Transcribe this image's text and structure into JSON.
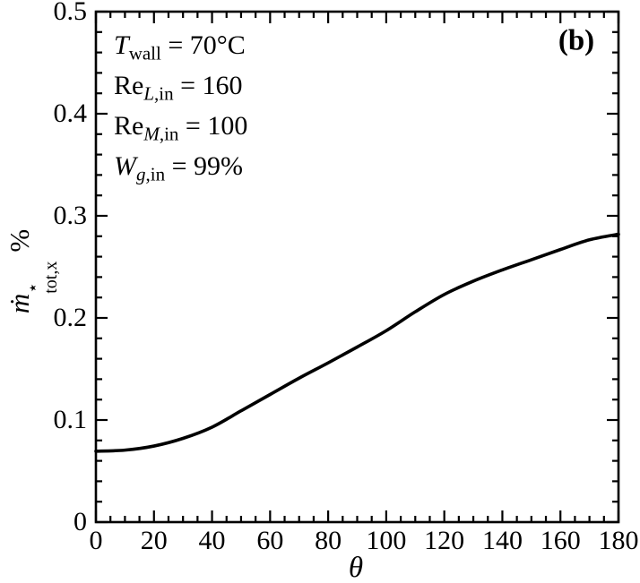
{
  "figure": {
    "panel_label": "(b)",
    "background": "#ffffff",
    "line_color": "#000000"
  },
  "axes": {
    "x_label": "θ",
    "y_label": {
      "base": "ṁ",
      "sup": "⋆",
      "sub": "tot,x",
      "unit": "%"
    },
    "x_tick_labels": [
      "0",
      "20",
      "40",
      "60",
      "80",
      "100",
      "120",
      "140",
      "160",
      "180"
    ],
    "y_tick_labels": [
      "0",
      "0.1",
      "0.2",
      "0.3",
      "0.4",
      "0.5"
    ]
  },
  "annotations": [
    {
      "base_it": "T",
      "base_rm": "",
      "sub_it": "",
      "sub_rm": "wall",
      "eq": " = 70°C"
    },
    {
      "base_it": "",
      "base_rm": "Re",
      "sub_it": "L",
      "sub_rm": ",in",
      "eq": " = 160"
    },
    {
      "base_it": "",
      "base_rm": "Re",
      "sub_it": "M",
      "sub_rm": ",in",
      "eq": " = 100"
    },
    {
      "base_it": "W",
      "base_rm": "",
      "sub_it": "g",
      "sub_rm": ",in",
      "eq": " = 99%"
    }
  ],
  "chart_data": {
    "type": "line",
    "title": "",
    "xlabel": "θ",
    "ylabel": "ṁ⋆tot,x %",
    "panel_label": "(b)",
    "xlim": [
      0,
      180
    ],
    "ylim": [
      0,
      0.5
    ],
    "x_major_step": 20,
    "x_minor_step": 5,
    "y_major_step": 0.1,
    "y_minor_step": 0.02,
    "grid": false,
    "legend": "none",
    "annotations_text": [
      "T_wall = 70°C",
      "Re_L,in = 160",
      "Re_M,in = 100",
      "W_g,in = 99%"
    ],
    "series": [
      {
        "name": "mdot_star_tot_x_percent",
        "color": "#000000",
        "x": [
          0,
          10,
          20,
          30,
          40,
          50,
          60,
          70,
          80,
          90,
          100,
          110,
          120,
          130,
          140,
          150,
          160,
          170,
          180
        ],
        "y": [
          0.0695,
          0.0705,
          0.0745,
          0.082,
          0.093,
          0.109,
          0.125,
          0.141,
          0.156,
          0.1715,
          0.1875,
          0.206,
          0.223,
          0.236,
          0.247,
          0.257,
          0.267,
          0.2765,
          0.282
        ]
      }
    ]
  }
}
